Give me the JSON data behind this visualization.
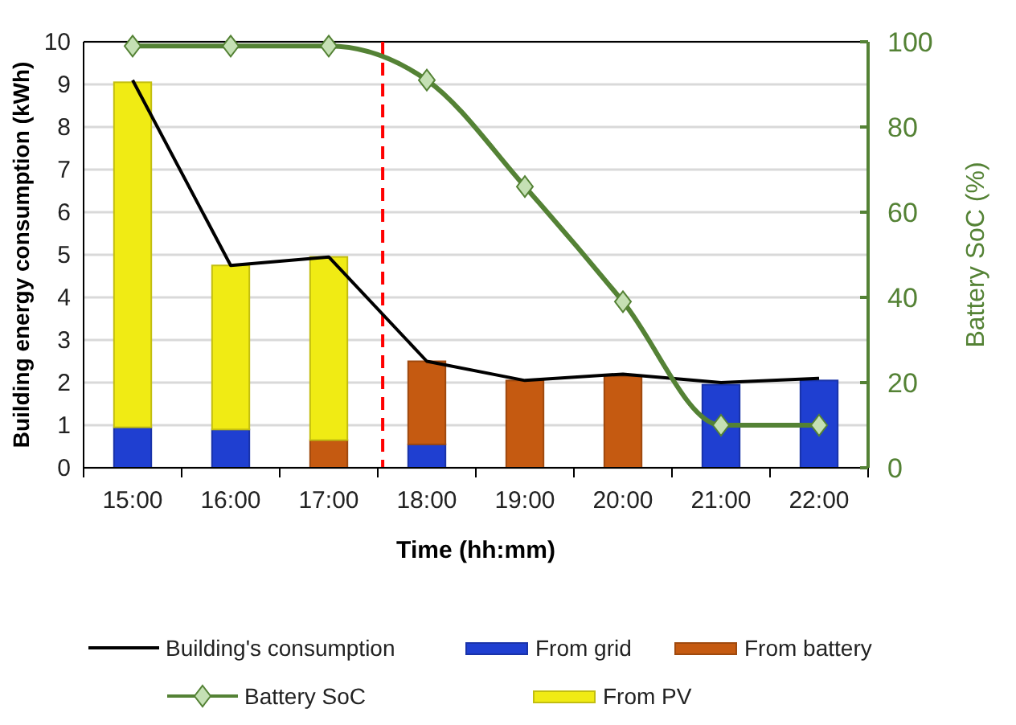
{
  "chart_data": {
    "type": "bar",
    "stacked": true,
    "xlabel": "Time (hh:mm)",
    "ylabel": "Building energy consumption (kWh)",
    "y2label": "Battery SoC (%)",
    "x": [
      15,
      16,
      17,
      18,
      19,
      20,
      21,
      22
    ],
    "xlim": [
      14.5,
      22.5
    ],
    "xticks": [
      {
        "value": 14.5,
        "label": null
      },
      {
        "value": 15.5,
        "label": null
      },
      {
        "value": 16.5,
        "label": null
      },
      {
        "value": 17.5,
        "label": null
      },
      {
        "value": 18.5,
        "label": null
      },
      {
        "value": 19.5,
        "label": null
      },
      {
        "value": 20.5,
        "label": null
      },
      {
        "value": 21.5,
        "label": null
      },
      {
        "value": 22.5,
        "label": null
      },
      {
        "value": 15,
        "label": "15:00"
      },
      {
        "value": 16,
        "label": "16:00"
      },
      {
        "value": 17,
        "label": "17:00"
      },
      {
        "value": 18,
        "label": "18:00"
      },
      {
        "value": 19,
        "label": "19:00"
      },
      {
        "value": 20,
        "label": "20:00"
      },
      {
        "value": 21,
        "label": "21:00"
      },
      {
        "value": 22,
        "label": "22:00"
      }
    ],
    "ylim": [
      0,
      10
    ],
    "yticks": [
      0,
      1,
      2,
      3,
      4,
      5,
      6,
      7,
      8,
      9,
      10
    ],
    "y2lim": [
      0,
      100
    ],
    "y2ticks": [
      0,
      20,
      40,
      60,
      80,
      100
    ],
    "grid": "y",
    "legend": "bottom",
    "ref_lines": [
      {
        "axis": "x",
        "value": 17.55,
        "color": "#ff0000",
        "line_style": "dashed"
      }
    ],
    "series": [
      {
        "name": "From grid",
        "color": "#1f3fd1",
        "values": [
          0.95,
          0.9,
          0,
          0.55,
          0,
          0,
          1.95,
          2.05
        ]
      },
      {
        "name": "From battery",
        "color": "#c55a11",
        "values": [
          0,
          0,
          0.65,
          1.95,
          2.05,
          2.15,
          0,
          0
        ]
      },
      {
        "name": "From PV",
        "color": "#f0eb14",
        "values": [
          8.1,
          3.85,
          4.3,
          0,
          0,
          0,
          0,
          0
        ]
      },
      {
        "name": "Building's consumption",
        "type": "line",
        "color": "#000000",
        "marker": "none",
        "values": [
          9.1,
          4.75,
          4.95,
          2.5,
          2.05,
          2.2,
          2.0,
          2.1
        ]
      },
      {
        "name": "Battery SoC",
        "type": "line",
        "axis": "y2",
        "color": "#548235",
        "marker": "diamond",
        "values": [
          99,
          99,
          99,
          91,
          66,
          39,
          10,
          10
        ]
      }
    ]
  }
}
